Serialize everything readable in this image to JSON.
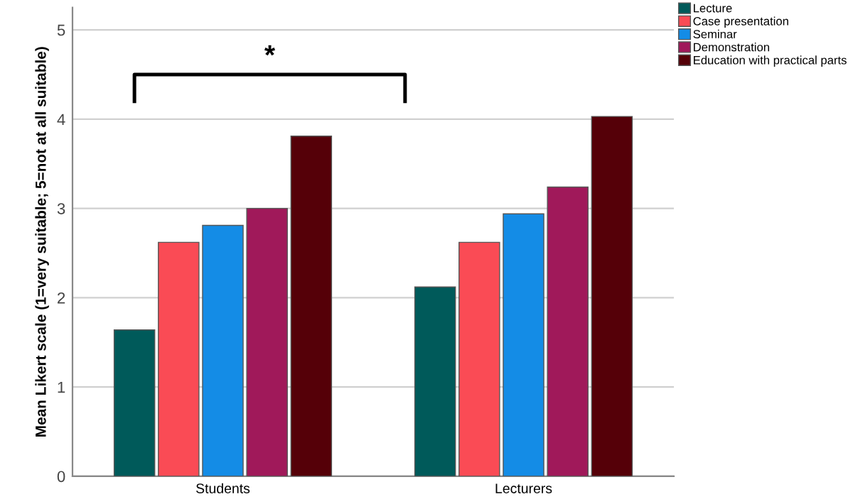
{
  "chart_data": {
    "type": "bar",
    "ylabel": "Mean Likert scale (1=very suitable; 5=not at all suitable)",
    "categories": [
      "Students",
      "Lecturers"
    ],
    "series": [
      {
        "name": "Lecture",
        "color": "#005a5a",
        "values": [
          1.64,
          2.12
        ]
      },
      {
        "name": "Case presentation",
        "color": "#fa4b55",
        "values": [
          2.62,
          2.62
        ]
      },
      {
        "name": "Seminar",
        "color": "#148ce6",
        "values": [
          2.81,
          2.94
        ]
      },
      {
        "name": "Demonstration",
        "color": "#a0195a",
        "values": [
          3.0,
          3.24
        ]
      },
      {
        "name": "Education with practical parts",
        "color": "#550008",
        "values": [
          3.81,
          4.03
        ]
      }
    ],
    "ylim": [
      0,
      5.25
    ],
    "yticks": [
      0,
      1,
      2,
      3,
      4,
      5
    ],
    "grid": "y",
    "legend": "top right",
    "annotations": [
      "*"
    ]
  }
}
